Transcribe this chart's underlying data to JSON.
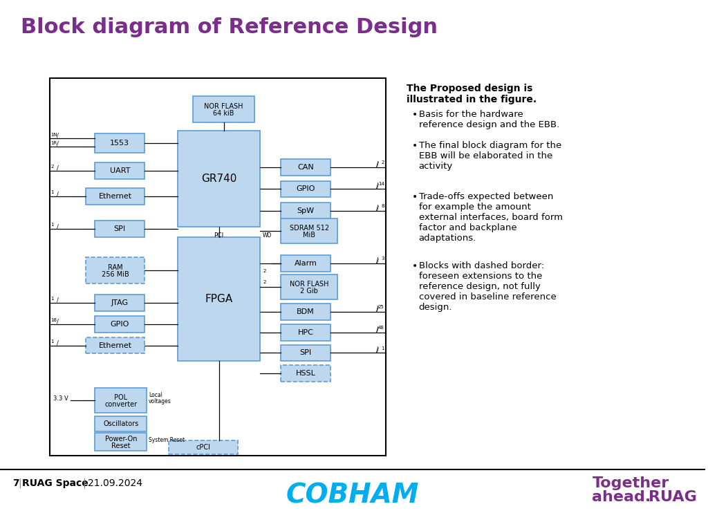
{
  "title": "Block diagram of Reference Design",
  "title_color": "#7B2D8B",
  "bg_color": "#FFFFFF",
  "slide_footer_left": "7│RUAG Space│ 21.09.2024",
  "bullet_header": "The Proposed design is\nillustrated in the figure.",
  "bullets": [
    "Basis for the hardware\nreference design and the EBB.",
    "The final block diagram for the\nEBB will be elaborated in the\nactivity",
    "Trade-offs expected between\nfor example the amount\nexternal interfaces, board form\nfactor and backplane\nadaptations.",
    "Blocks with dashed border:\nforeseen extensions to the\nreference design, not fully\ncovered in baseline reference\ndesign."
  ],
  "box_fill": "#BDD7EE",
  "box_edge": "#5B9BD5",
  "outer_box_fill": "#FFFFFF",
  "outer_box_edge": "#000000",
  "dashed_box_fill": "#BDD7EE",
  "dashed_box_edge": "#5B9BD5",
  "cobham_color": "#00AEEF",
  "ruag_purple": "#7B2D8B",
  "ruag_green": "#00A651"
}
